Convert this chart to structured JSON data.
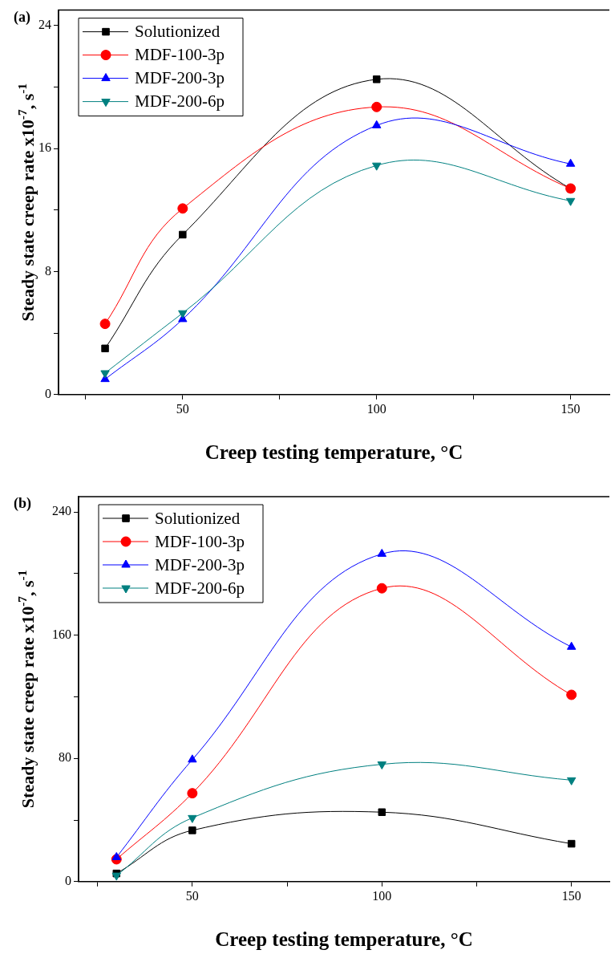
{
  "chart_data": [
    {
      "type": "line",
      "title": "(a)",
      "xlabel": "Creep testing temperature, °C",
      "ylabel": "Steady state creep rate x10$^{-7}$, s$^{-1}$",
      "x": [
        30,
        50,
        100,
        150
      ],
      "series": [
        {
          "name": "Solutionized",
          "color": "#000000",
          "marker": "square",
          "values": [
            3.0,
            10.4,
            20.5,
            13.4
          ]
        },
        {
          "name": "MDF-100-3p",
          "color": "#ff0000",
          "marker": "circle",
          "values": [
            4.6,
            12.1,
            18.7,
            13.4
          ]
        },
        {
          "name": "MDF-200-3p",
          "color": "#0000ff",
          "marker": "triangle",
          "values": [
            1.0,
            4.9,
            17.5,
            15.0
          ]
        },
        {
          "name": "MDF-200-6p",
          "color": "#008080",
          "marker": "triangle-down",
          "values": [
            1.4,
            5.3,
            14.9,
            12.6
          ]
        }
      ],
      "xlim": [
        18,
        160
      ],
      "xticks": [
        {
          "value": 25,
          "label": null
        },
        50,
        {
          "value": 75,
          "label": null
        },
        100,
        {
          "value": 125,
          "label": null
        },
        150
      ],
      "ylim": [
        0,
        25
      ],
      "yticks": [
        0,
        {
          "value": 4,
          "label": null
        },
        8,
        {
          "value": 12,
          "label": null
        },
        16,
        {
          "value": 20,
          "label": null
        },
        24
      ],
      "grid": false,
      "legend": "top left"
    },
    {
      "type": "line",
      "title": "(b)",
      "xlabel": "Creep testing temperature, °C",
      "ylabel": "Steady state creep rate x10$^{-7}$, s$^{-1}$",
      "x": [
        30,
        50,
        100,
        150
      ],
      "series": [
        {
          "name": "Solutionized",
          "color": "#000000",
          "marker": "square",
          "values": [
            5.3,
            33.3,
            45.1,
            24.6
          ]
        },
        {
          "name": "MDF-100-3p",
          "color": "#ff0000",
          "marker": "circle",
          "values": [
            14.5,
            57.4,
            190.5,
            121.3
          ]
        },
        {
          "name": "MDF-200-3p",
          "color": "#0000ff",
          "marker": "triangle",
          "values": [
            15.8,
            79.2,
            212.8,
            152.4
          ]
        },
        {
          "name": "MDF-200-6p",
          "color": "#008080",
          "marker": "triangle-down",
          "values": [
            4.0,
            41.4,
            76.2,
            65.9
          ]
        }
      ],
      "xlim": [
        20,
        160
      ],
      "xticks": [
        {
          "value": 25,
          "label": null
        },
        50,
        {
          "value": 75,
          "label": null
        },
        100,
        {
          "value": 125,
          "label": null
        },
        150
      ],
      "ylim": [
        0,
        250
      ],
      "yticks": [
        0,
        {
          "value": 40,
          "label": null
        },
        80,
        {
          "value": 120,
          "label": null
        },
        160,
        {
          "value": 200,
          "label": null
        },
        240
      ],
      "grid": false,
      "legend": "top left"
    }
  ]
}
